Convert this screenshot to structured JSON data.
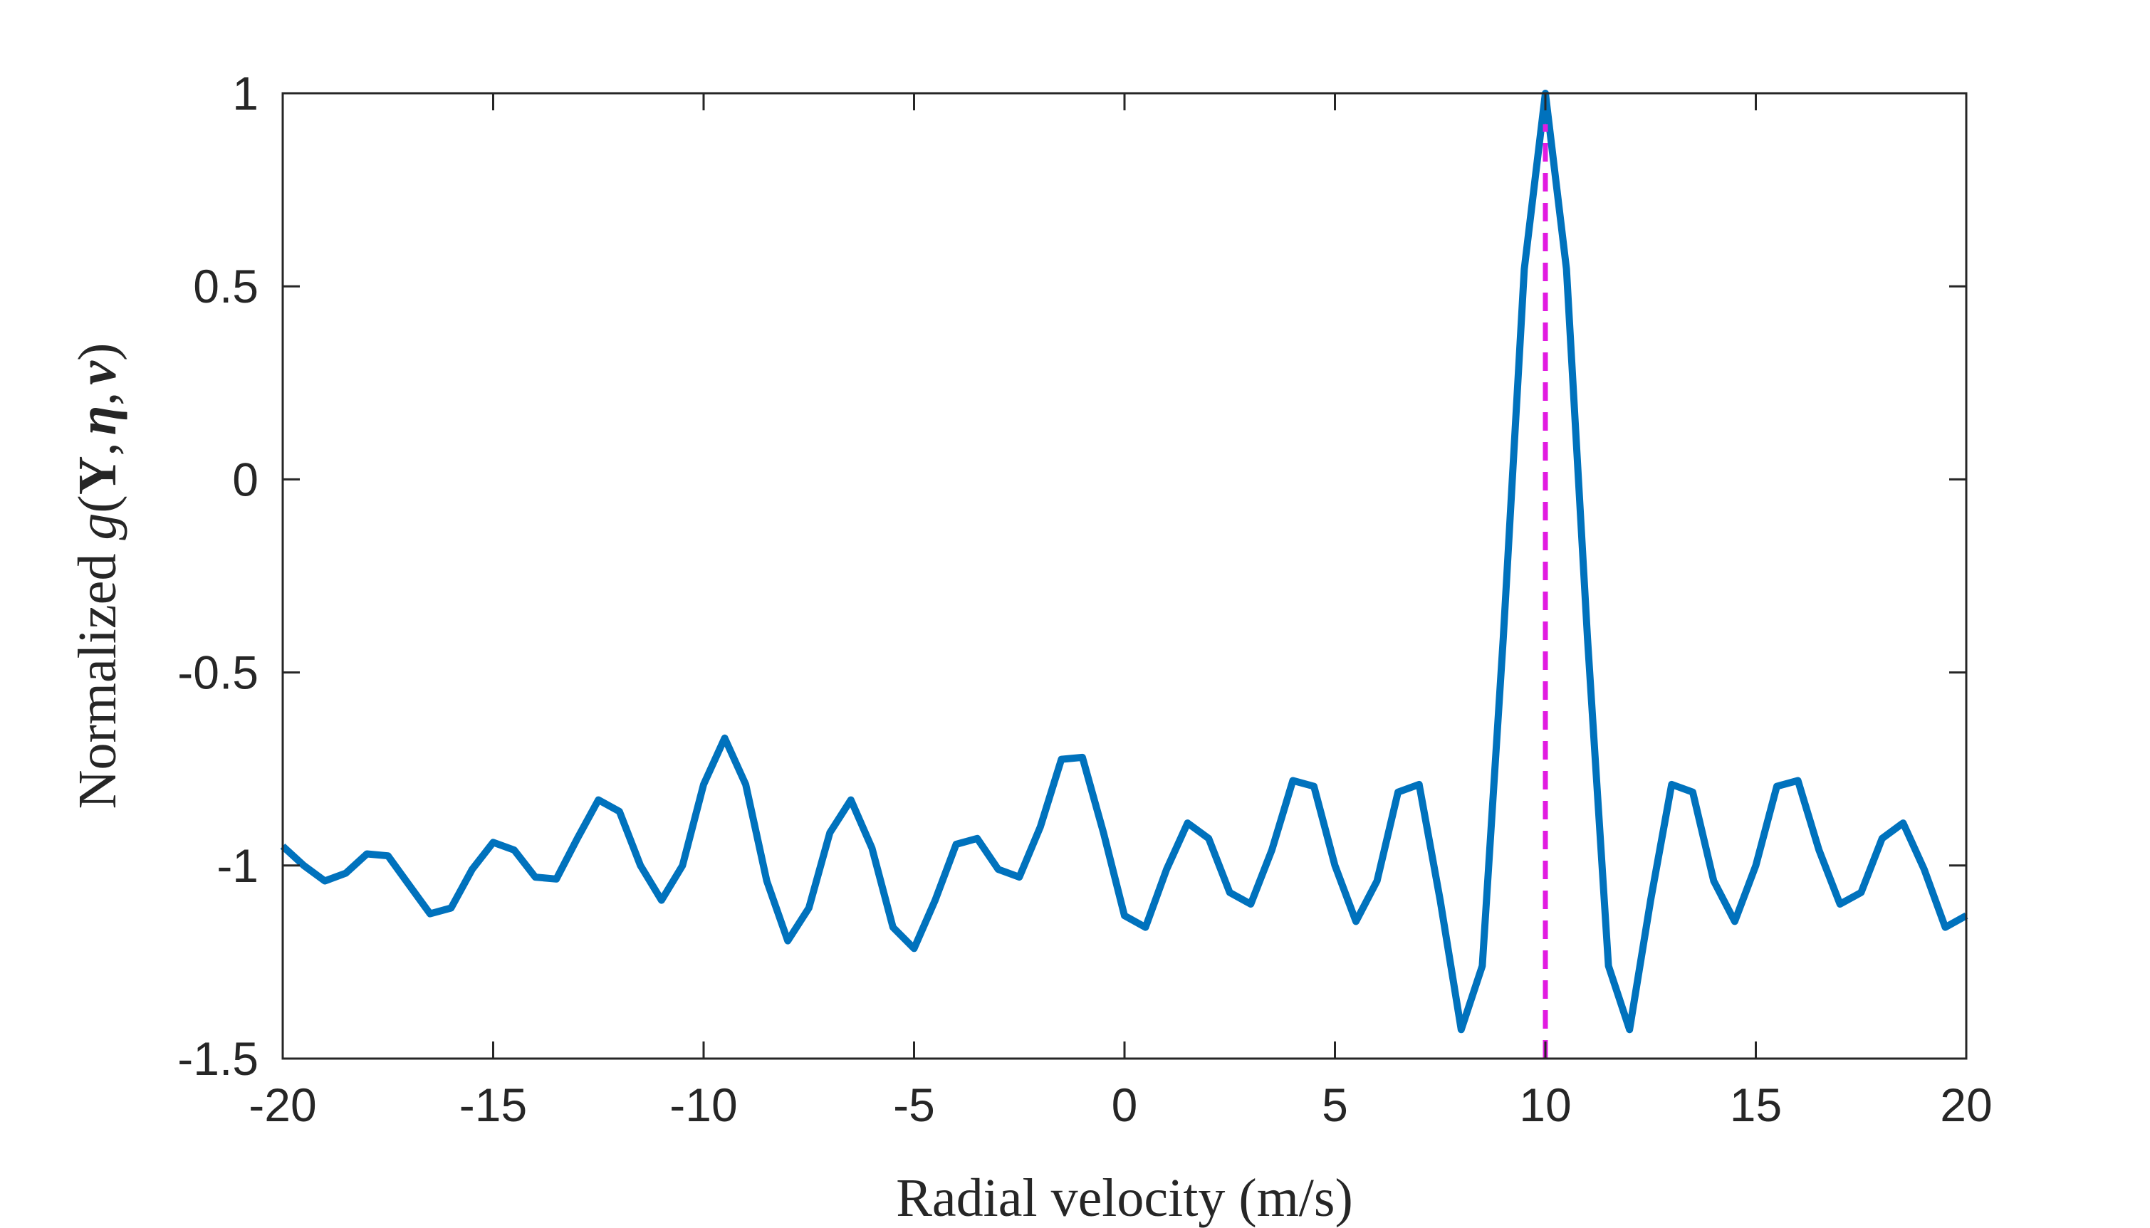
{
  "chart_data": {
    "type": "line",
    "xlabel": "Radial velocity (m/s)",
    "ylabel": {
      "prefix": "Normalized ",
      "func": "g",
      "open": "(",
      "arg1": "Y",
      "sep1": ",",
      "arg2": "η",
      "sep2": ",",
      "arg3": "v",
      "close": ")"
    },
    "xlim": [
      -20,
      20
    ],
    "ylim": [
      -1.5,
      1
    ],
    "xticks": [
      -20,
      -15,
      -10,
      -5,
      0,
      5,
      10,
      15,
      20
    ],
    "xtick_labels": [
      "-20",
      "-15",
      "-10",
      "-5",
      "0",
      "5",
      "10",
      "15",
      "20"
    ],
    "yticks": [
      1,
      0.5,
      0,
      -0.5,
      -1,
      -1.5
    ],
    "ytick_labels": [
      "1",
      "0.5",
      "0",
      "-0.5",
      "-1",
      "-1.5"
    ],
    "grid": false,
    "series": [
      {
        "color": "#0072BD",
        "style": "solid",
        "x": [
          -20,
          -19.5,
          -19,
          -18.5,
          -18,
          -17.5,
          -17,
          -16.5,
          -16,
          -15.5,
          -15,
          -14.5,
          -14,
          -13.5,
          -13,
          -12.5,
          -12,
          -11.5,
          -11,
          -10.5,
          -10,
          -9.5,
          -9,
          -8.5,
          -8,
          -7.5,
          -7,
          -6.5,
          -6,
          -5.5,
          -5,
          -4.5,
          -4,
          -3.5,
          -3,
          -2.5,
          -2,
          -1.5,
          -1,
          -0.5,
          0,
          0.5,
          1,
          1.5,
          2,
          2.5,
          3,
          3.5,
          4,
          4.5,
          5,
          5.5,
          6,
          6.5,
          7,
          7.5,
          8,
          8.5,
          9,
          9.5,
          10,
          10.5,
          11,
          11.5,
          12,
          12.5,
          13,
          13.5,
          14,
          14.5,
          15,
          15.5,
          16,
          16.5,
          17,
          17.5,
          18,
          18.5,
          19,
          19.5,
          20
        ],
        "y": [
          -0.95,
          -1.0,
          -1.04,
          -1.02,
          -0.97,
          -0.975,
          -1.05,
          -1.125,
          -1.11,
          -1.01,
          -0.94,
          -0.96,
          -1.03,
          -1.035,
          -0.93,
          -0.83,
          -0.86,
          -1.0,
          -1.09,
          -1.0,
          -0.79,
          -0.67,
          -0.79,
          -1.04,
          -1.195,
          -1.11,
          -0.915,
          -0.83,
          -0.955,
          -1.16,
          -1.215,
          -1.09,
          -0.945,
          -0.93,
          -1.01,
          -1.03,
          -0.9,
          -0.725,
          -0.72,
          -0.915,
          -1.13,
          -1.16,
          -1.01,
          -0.89,
          -0.93,
          -1.07,
          -1.1,
          -0.96,
          -0.78,
          -0.795,
          -1.0,
          -1.145,
          -1.04,
          -0.81,
          -0.79,
          -1.09,
          -1.425,
          -1.26,
          -0.41,
          0.545,
          1.0,
          0.545,
          -0.41,
          -1.26,
          -1.425,
          -1.09,
          -0.79,
          -0.81,
          -1.04,
          -1.145,
          -1.0,
          -0.795,
          -0.78,
          -0.96,
          -1.1,
          -1.07,
          -0.93,
          -0.89,
          -1.01,
          -1.16,
          -1.13
        ]
      },
      {
        "color": "#E11BE1",
        "style": "dashed",
        "x": [
          10,
          10
        ],
        "y": [
          -1.5,
          0.92
        ]
      }
    ]
  }
}
